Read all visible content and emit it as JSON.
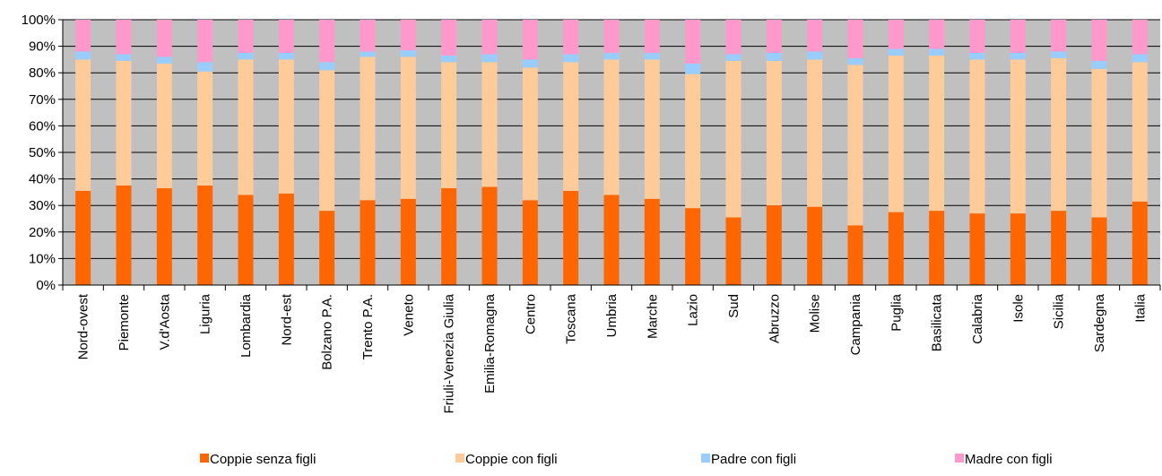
{
  "chart_data": {
    "type": "bar",
    "stacked": true,
    "normalized": true,
    "title": "",
    "xlabel": "",
    "ylabel": "",
    "ylim": [
      0,
      100
    ],
    "y_ticks": [
      "0%",
      "10%",
      "20%",
      "30%",
      "40%",
      "50%",
      "60%",
      "70%",
      "80%",
      "90%",
      "100%"
    ],
    "grid": true,
    "plot_background": "#c0c0c0",
    "legend_position": "bottom",
    "categories": [
      "Nord-ovest",
      "Piemonte",
      "V.d'Aosta",
      "Liguria",
      "Lombardia",
      "Nord-est",
      "Bolzano P.A.",
      "Trento P.A.",
      "Veneto",
      "Friuli-Venezia Giulia",
      "Emilia-Romagna",
      "Centro",
      "Toscana",
      "Umbria",
      "Marche",
      "Lazio",
      "Sud",
      "Abruzzo",
      "Molise",
      "Campania",
      "Puglia",
      "Basilicata",
      "Calabria",
      "Isole",
      "Sicilia",
      "Sardegna",
      "Italia"
    ],
    "series": [
      {
        "name": "Coppie senza figli",
        "color": "#ff6600",
        "values": [
          35.5,
          37.5,
          36.5,
          37.5,
          34,
          34.5,
          28,
          32,
          32.5,
          36.5,
          37,
          32,
          35.5,
          34,
          32.5,
          29,
          25.5,
          30,
          29.5,
          22.5,
          27.5,
          28,
          27,
          27,
          28,
          25.5,
          31.5
        ]
      },
      {
        "name": "Coppie con figli",
        "color": "#ffcc99",
        "values": [
          49.5,
          47,
          47,
          43,
          51,
          50.5,
          53,
          54,
          53.5,
          47.5,
          47,
          50,
          48.5,
          51,
          52.5,
          50.5,
          59,
          54.5,
          55.5,
          60.5,
          59,
          58.5,
          58,
          58,
          57.5,
          56,
          52.5
        ]
      },
      {
        "name": "Padre con figli",
        "color": "#99ccff",
        "values": [
          3,
          2.5,
          2.5,
          3.5,
          2.5,
          2.5,
          3,
          2,
          2.5,
          2.5,
          3,
          3,
          3,
          2.5,
          2.5,
          4,
          2.5,
          3,
          3,
          2.5,
          2.5,
          2.5,
          2.5,
          2.5,
          2.5,
          3,
          3
        ]
      },
      {
        "name": "Madre con figli",
        "color": "#ff99cc",
        "values": [
          12,
          13,
          14,
          16,
          12.5,
          12.5,
          16,
          12,
          11.5,
          13.5,
          13,
          15,
          13,
          12.5,
          12.5,
          16.5,
          13,
          12.5,
          12,
          14.5,
          11,
          11,
          12.5,
          12.5,
          12,
          15.5,
          13
        ]
      }
    ]
  }
}
